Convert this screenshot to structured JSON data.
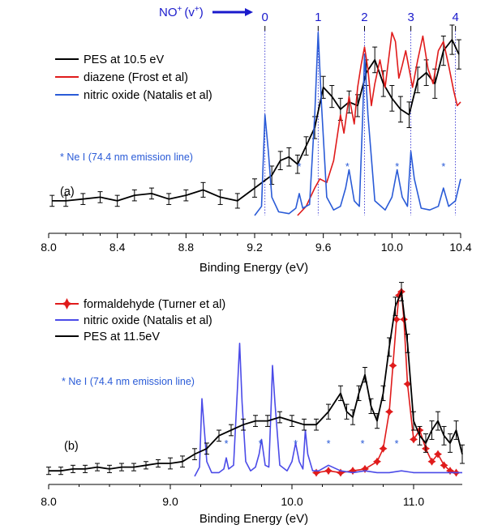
{
  "colors": {
    "black": "#000000",
    "red": "#e01b1b",
    "blue": "#2a5bd7",
    "purple_blue": "#4b4be8",
    "vlabel_blue": "#1a1acc"
  },
  "chart_data": [
    {
      "type": "line",
      "panel_label": "(a)",
      "xlabel": "Binding Energy (eV)",
      "ylabel": "",
      "xlim": [
        8.0,
        10.4
      ],
      "ylim": [
        0,
        1.0
      ],
      "xticks": [
        "8.0",
        "8.4",
        "8.8",
        "9.2",
        "9.6",
        "10.0",
        "10.4"
      ],
      "legend_position": "top-left",
      "top_axis": {
        "label": "NO",
        "superscript": "+",
        "label_suffix": "(v",
        "label_suffix_sup": "+",
        "label_close": ")",
        "levels": [
          {
            "label": "0",
            "x": 9.26
          },
          {
            "label": "1",
            "x": 9.57
          },
          {
            "label": "2",
            "x": 9.84
          },
          {
            "label": "3",
            "x": 10.11
          },
          {
            "label": "4",
            "x": 10.37
          }
        ]
      },
      "annotation": "* Ne I (74.4 nm emission line)",
      "star_marker": "*",
      "stars_x": [
        9.46,
        9.74,
        10.03,
        10.3
      ],
      "series": [
        {
          "name": "PES at 10.5 eV",
          "color": "#000000",
          "errorbars": true,
          "x": [
            8.02,
            8.1,
            8.2,
            8.3,
            8.4,
            8.5,
            8.6,
            8.7,
            8.8,
            8.9,
            9.0,
            9.1,
            9.2,
            9.3,
            9.35,
            9.4,
            9.45,
            9.5,
            9.55,
            9.6,
            9.65,
            9.7,
            9.75,
            9.8,
            9.85,
            9.9,
            9.95,
            10.0,
            10.05,
            10.1,
            10.15,
            10.2,
            10.25,
            10.3,
            10.35,
            10.39
          ],
          "y": [
            0.08,
            0.08,
            0.09,
            0.1,
            0.08,
            0.11,
            0.12,
            0.09,
            0.11,
            0.14,
            0.1,
            0.08,
            0.15,
            0.22,
            0.3,
            0.32,
            0.28,
            0.38,
            0.48,
            0.7,
            0.65,
            0.58,
            0.62,
            0.6,
            0.78,
            0.85,
            0.72,
            0.64,
            0.58,
            0.55,
            0.74,
            0.78,
            0.72,
            0.9,
            0.96,
            0.88
          ],
          "err": [
            0.03,
            0.03,
            0.03,
            0.03,
            0.03,
            0.03,
            0.03,
            0.03,
            0.03,
            0.04,
            0.04,
            0.04,
            0.05,
            0.05,
            0.05,
            0.05,
            0.05,
            0.05,
            0.06,
            0.06,
            0.06,
            0.06,
            0.06,
            0.06,
            0.07,
            0.07,
            0.07,
            0.07,
            0.07,
            0.07,
            0.07,
            0.07,
            0.08,
            0.08,
            0.08,
            0.08
          ]
        },
        {
          "name": "diazene (Frost et al)",
          "color": "#e01b1b",
          "x": [
            9.45,
            9.5,
            9.55,
            9.58,
            9.62,
            9.66,
            9.7,
            9.72,
            9.75,
            9.78,
            9.8,
            9.82,
            9.84,
            9.86,
            9.88,
            9.9,
            9.93,
            9.96,
            10.0,
            10.02,
            10.04,
            10.06,
            10.08,
            10.1,
            10.12,
            10.15,
            10.18,
            10.21,
            10.24,
            10.27,
            10.3,
            10.33,
            10.36,
            10.38,
            10.4
          ],
          "y": [
            0.0,
            0.05,
            0.15,
            0.2,
            0.18,
            0.3,
            0.55,
            0.45,
            0.65,
            0.5,
            0.7,
            0.82,
            0.92,
            0.8,
            0.6,
            0.72,
            0.85,
            0.7,
            1.0,
            0.95,
            0.75,
            0.82,
            0.9,
            0.8,
            0.7,
            0.85,
            0.98,
            0.8,
            0.72,
            0.9,
            0.95,
            0.82,
            0.68,
            0.6,
            0.62
          ],
          "errorbars": false
        },
        {
          "name": "nitric oxide (Natalis et al)",
          "color": "#2a5bd7",
          "x": [
            9.2,
            9.24,
            9.26,
            9.28,
            9.3,
            9.34,
            9.4,
            9.44,
            9.46,
            9.48,
            9.52,
            9.55,
            9.57,
            9.59,
            9.62,
            9.66,
            9.7,
            9.73,
            9.75,
            9.78,
            9.81,
            9.83,
            9.84,
            9.86,
            9.9,
            9.96,
            10.0,
            10.03,
            10.06,
            10.09,
            10.11,
            10.13,
            10.17,
            10.22,
            10.27,
            10.3,
            10.33,
            10.37,
            10.4
          ],
          "y": [
            0.0,
            0.05,
            0.55,
            0.35,
            0.1,
            0.02,
            0.01,
            0.04,
            0.12,
            0.04,
            0.06,
            0.55,
            1.0,
            0.6,
            0.1,
            0.03,
            0.05,
            0.15,
            0.25,
            0.08,
            0.05,
            0.55,
            0.88,
            0.55,
            0.08,
            0.03,
            0.1,
            0.25,
            0.1,
            0.05,
            0.35,
            0.2,
            0.04,
            0.03,
            0.05,
            0.15,
            0.05,
            0.08,
            0.2
          ],
          "errorbars": false
        }
      ]
    },
    {
      "type": "line",
      "panel_label": "(b)",
      "xlabel": "Binding Energy (eV)",
      "ylabel": "",
      "xlim": [
        8.0,
        11.4
      ],
      "ylim": [
        0,
        1.0
      ],
      "xticks": [
        "8.0",
        "9.0",
        "10.0",
        "11.0"
      ],
      "legend_position": "top-left",
      "annotation": "* Ne I (74.4 nm emission line)",
      "star_marker": "*",
      "stars_x": [
        9.46,
        9.74,
        10.03,
        10.3,
        10.58,
        10.86
      ],
      "series": [
        {
          "name": "formaldehyde (Turner et al)",
          "color": "#e01b1b",
          "markers": "diamond",
          "x": [
            10.2,
            10.3,
            10.4,
            10.5,
            10.6,
            10.7,
            10.75,
            10.8,
            10.83,
            10.86,
            10.88,
            10.9,
            10.92,
            10.95,
            11.0,
            11.05,
            11.1,
            11.15,
            11.2,
            11.25,
            11.3,
            11.35
          ],
          "y": [
            0.02,
            0.03,
            0.02,
            0.03,
            0.04,
            0.08,
            0.15,
            0.35,
            0.6,
            0.85,
            0.98,
            1.0,
            0.85,
            0.5,
            0.2,
            0.25,
            0.15,
            0.08,
            0.12,
            0.06,
            0.03,
            0.02
          ],
          "errorbars": false
        },
        {
          "name": "nitric oxide (Natalis et al)",
          "color": "#4b4be8",
          "x": [
            9.2,
            9.24,
            9.26,
            9.28,
            9.3,
            9.34,
            9.4,
            9.44,
            9.46,
            9.48,
            9.52,
            9.55,
            9.57,
            9.59,
            9.62,
            9.66,
            9.7,
            9.73,
            9.75,
            9.78,
            9.81,
            9.83,
            9.84,
            9.86,
            9.9,
            9.96,
            10.0,
            10.03,
            10.06,
            10.09,
            10.11,
            10.13,
            10.17,
            10.22,
            10.3,
            10.4,
            10.5,
            10.6,
            10.7,
            10.8,
            10.9,
            11.0,
            11.1,
            11.2,
            11.3,
            11.4
          ],
          "y": [
            0.0,
            0.05,
            0.42,
            0.25,
            0.08,
            0.02,
            0.02,
            0.04,
            0.1,
            0.04,
            0.06,
            0.45,
            0.72,
            0.4,
            0.08,
            0.03,
            0.05,
            0.12,
            0.2,
            0.06,
            0.05,
            0.4,
            0.6,
            0.4,
            0.06,
            0.03,
            0.08,
            0.18,
            0.08,
            0.04,
            0.25,
            0.12,
            0.03,
            0.03,
            0.06,
            0.03,
            0.02,
            0.03,
            0.02,
            0.02,
            0.03,
            0.02,
            0.02,
            0.02,
            0.02,
            0.02
          ],
          "errorbars": false
        },
        {
          "name": "PES at 11.5eV",
          "color": "#000000",
          "errorbars": true,
          "x": [
            8.0,
            8.1,
            8.2,
            8.3,
            8.4,
            8.5,
            8.6,
            8.7,
            8.8,
            8.9,
            9.0,
            9.1,
            9.2,
            9.3,
            9.4,
            9.5,
            9.6,
            9.7,
            9.8,
            9.9,
            10.0,
            10.1,
            10.2,
            10.3,
            10.4,
            10.45,
            10.5,
            10.55,
            10.6,
            10.65,
            10.7,
            10.75,
            10.8,
            10.85,
            10.9,
            10.95,
            11.0,
            11.05,
            11.1,
            11.15,
            11.2,
            11.25,
            11.3,
            11.35,
            11.4
          ],
          "y": [
            0.03,
            0.03,
            0.04,
            0.04,
            0.05,
            0.04,
            0.05,
            0.05,
            0.06,
            0.07,
            0.07,
            0.08,
            0.12,
            0.15,
            0.22,
            0.25,
            0.28,
            0.3,
            0.3,
            0.32,
            0.3,
            0.28,
            0.28,
            0.35,
            0.45,
            0.35,
            0.32,
            0.45,
            0.55,
            0.38,
            0.3,
            0.45,
            0.7,
            0.92,
            1.0,
            0.72,
            0.3,
            0.22,
            0.18,
            0.25,
            0.3,
            0.22,
            0.18,
            0.25,
            0.12
          ],
          "err": [
            0.02,
            0.02,
            0.02,
            0.02,
            0.02,
            0.02,
            0.02,
            0.02,
            0.02,
            0.02,
            0.03,
            0.03,
            0.03,
            0.03,
            0.03,
            0.03,
            0.03,
            0.03,
            0.03,
            0.03,
            0.03,
            0.03,
            0.03,
            0.04,
            0.04,
            0.04,
            0.04,
            0.04,
            0.04,
            0.04,
            0.04,
            0.04,
            0.05,
            0.05,
            0.05,
            0.05,
            0.05,
            0.05,
            0.05,
            0.05,
            0.05,
            0.05,
            0.05,
            0.05,
            0.05
          ]
        }
      ]
    }
  ]
}
